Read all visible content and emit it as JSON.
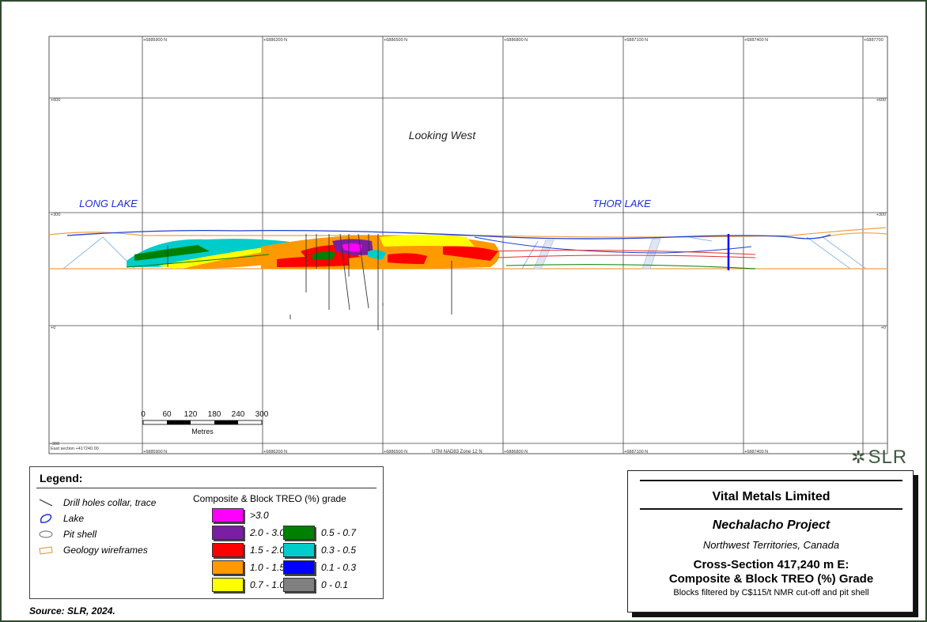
{
  "section": {
    "view_label": "Looking West",
    "place_labels": [
      "LONG LAKE",
      "THOR LAKE"
    ],
    "top_northing_labels": [
      "+6885900 N",
      "+6886200 N",
      "+6886500 N",
      "+6886800 N",
      "+6887100 N",
      "+6887400 N",
      "+6887700"
    ],
    "bottom_northing_labels": [
      "+6885900 N",
      "+6886200 N",
      "+6886500 N",
      "+6886800 N",
      "+6887100 N",
      "+6887400 N"
    ],
    "elevation_labels": {
      "left": [
        "+600",
        "+300",
        "+0",
        "-300"
      ],
      "right": [
        "+600",
        "+300",
        "+0"
      ]
    },
    "east_section_label": "East section +417240.00",
    "zone_label": "UTM NAD83 Zone 12 N",
    "scale_ticks": [
      "0",
      "60",
      "120",
      "180",
      "240",
      "300"
    ],
    "scale_unit": "Metres"
  },
  "legend": {
    "title": "Legend:",
    "items": [
      {
        "label": "Drill holes collar, trace",
        "icon": "drill-hole-line-icon",
        "color": "#333333"
      },
      {
        "label": "Lake",
        "icon": "lake-outline-icon",
        "color": "#1e2fd6"
      },
      {
        "label": "Pit shell",
        "icon": "pit-shell-icon",
        "color": "#808080"
      },
      {
        "label": "Geology wireframes",
        "icon": "wireframe-icon",
        "color": "#e8a050"
      }
    ],
    "grade_header": "Composite & Block TREO (%) grade",
    "grades": [
      {
        "label": ">3.0",
        "color": "#ff00ff"
      },
      {
        "label": "2.0 - 3.0",
        "color": "#7b1fa2"
      },
      {
        "label": "1.5 - 2.0",
        "color": "#ff0000"
      },
      {
        "label": "1.0 - 1.5",
        "color": "#ff9900"
      },
      {
        "label": "0.7 - 1.0",
        "color": "#ffff00"
      },
      {
        "label": "0.5 - 0.7",
        "color": "#008000"
      },
      {
        "label": "0.3 - 0.5",
        "color": "#00cccc"
      },
      {
        "label": "0.1 - 0.3",
        "color": "#0000ff"
      },
      {
        "label": "0 - 0.1",
        "color": "#808080"
      }
    ]
  },
  "titlebox": {
    "company": "Vital Metals Limited",
    "project": "Nechalacho Project",
    "location": "Northwest Territories, Canada",
    "section_title_1": "Cross-Section 417,240 m E:",
    "section_title_2": "Composite & Block TREO (%) Grade",
    "note": "Blocks filtered by C$115/t NMR cut-off and pit shell"
  },
  "source": "Source:  SLR, 2024.",
  "logo": {
    "mark": "✲",
    "text": "SLR",
    "color": "#3f5a3f"
  }
}
